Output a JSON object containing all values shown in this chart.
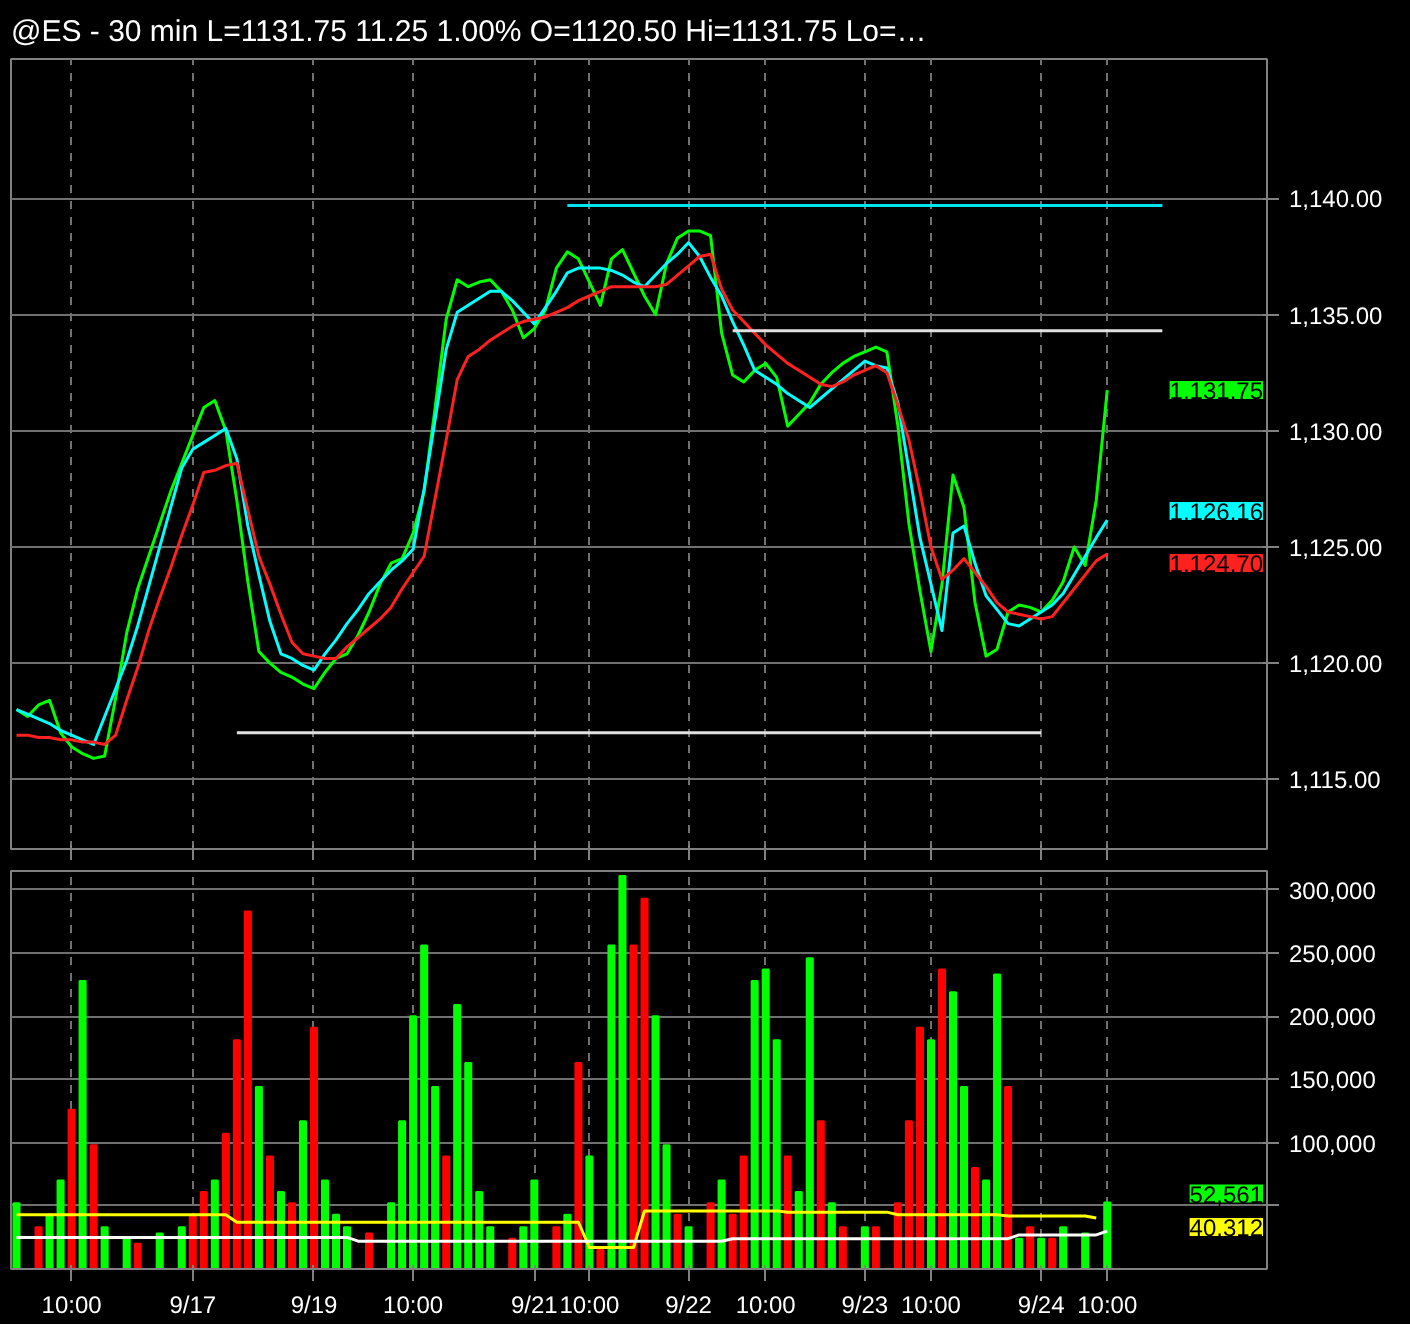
{
  "chart_data": [
    {
      "type": "line",
      "title": "@ES - 30 min  L=1131.75  11.25  1.00%  O=1120.50  Hi=1131.75  Lo=…",
      "categories": [
        null,
        null,
        null,
        null,
        null,
        null,
        null,
        null,
        null,
        null,
        null,
        null,
        null,
        null,
        null,
        null,
        null,
        null,
        null,
        null,
        null,
        null,
        null,
        null,
        null,
        null,
        null,
        null,
        null,
        null,
        null,
        null,
        null,
        null,
        null,
        null,
        null,
        null,
        null,
        null,
        null,
        null,
        null,
        null,
        null,
        null,
        null,
        null,
        null,
        null,
        null,
        null,
        null,
        null,
        null,
        null,
        null,
        null,
        null,
        null,
        null,
        null,
        null,
        null,
        null,
        null,
        null,
        null,
        null,
        null,
        null,
        null,
        null,
        null,
        null,
        null,
        null,
        null,
        null,
        null,
        null,
        null,
        null,
        null,
        null,
        null,
        null,
        null,
        null,
        null,
        null,
        null,
        null,
        null,
        null,
        null,
        null,
        null,
        null,
        null,
        null,
        null,
        null,
        null,
        null
      ],
      "ylim": [
        1112,
        1146
      ],
      "yticks": [
        {
          "value": 1115,
          "label": "1,115.00"
        },
        {
          "value": 1120,
          "label": "1,120.00"
        },
        {
          "value": 1125,
          "label": "1,125.00"
        },
        {
          "value": 1130,
          "label": "1,130.00"
        },
        {
          "value": 1135,
          "label": "1,135.00"
        },
        {
          "value": 1140,
          "label": "1,140.00"
        }
      ],
      "grid": true,
      "series": [
        {
          "color": "#00ff00",
          "values": [
            1118.0,
            1117.7,
            1118.2,
            1118.4,
            1117.0,
            1116.4,
            1116.1,
            1115.9,
            1116.0,
            1118.5,
            1121.3,
            1123.2,
            1124.6,
            1126.0,
            1127.4,
            1128.6,
            1129.8,
            1131.0,
            1131.3,
            1130.0,
            1127.0,
            1123.5,
            1120.5,
            1120.0,
            1119.6,
            1119.4,
            1119.1,
            1118.9,
            1119.6,
            1120.2,
            1120.4,
            1121.2,
            1122.2,
            1123.4,
            1124.3,
            1124.5,
            1125.6,
            1127.4,
            1131.0,
            1134.8,
            1136.5,
            1136.2,
            1136.4,
            1136.5,
            1136.0,
            1135.2,
            1134.0,
            1134.4,
            1135.2,
            1137.0,
            1137.7,
            1137.4,
            1136.4,
            1135.4,
            1137.4,
            1137.8,
            1136.8,
            1135.8,
            1135.0,
            1137.2,
            1138.3,
            1138.6,
            1138.6,
            1138.4,
            1134.2,
            1132.4,
            1132.1,
            1132.6,
            1132.9,
            1132.3,
            1130.2,
            1130.7,
            1131.2,
            1132.0,
            1132.5,
            1132.9,
            1133.2,
            1133.4,
            1133.6,
            1133.4,
            1130.2,
            1126.0,
            1123.1,
            1120.5,
            1123.4,
            1128.1,
            1126.7,
            1122.6,
            1120.3,
            1120.6,
            1122.2,
            1122.5,
            1122.4,
            1122.2,
            1122.7,
            1123.5,
            1125.0,
            1124.2,
            1127.0,
            1131.75,
            null,
            null,
            null,
            null,
            null
          ]
        },
        {
          "color": "#00ffff",
          "values": [
            1118.0,
            1117.8,
            1117.6,
            1117.4,
            1117.1,
            1116.9,
            1116.7,
            1116.5,
            1117.7,
            1118.9,
            1120.1,
            1121.6,
            1123.3,
            1125.0,
            1126.7,
            1128.4,
            1129.2,
            1129.5,
            1129.8,
            1130.1,
            1128.8,
            1125.9,
            1123.8,
            1121.8,
            1120.4,
            1120.2,
            1119.9,
            1119.7,
            1120.4,
            1121.0,
            1121.7,
            1122.3,
            1123.0,
            1123.5,
            1124.0,
            1124.4,
            1124.9,
            1127.5,
            1130.5,
            1133.5,
            1135.1,
            1135.4,
            1135.7,
            1136.0,
            1136.0,
            1135.6,
            1135.1,
            1134.6,
            1135.3,
            1136.0,
            1136.8,
            1137.0,
            1137.0,
            1137.0,
            1136.9,
            1136.7,
            1136.4,
            1136.2,
            1136.7,
            1137.2,
            1137.6,
            1138.1,
            1137.5,
            1136.6,
            1135.8,
            1134.7,
            1133.7,
            1132.6,
            1132.3,
            1132.0,
            1131.6,
            1131.3,
            1131.0,
            1131.4,
            1131.8,
            1132.2,
            1132.6,
            1133.0,
            1132.8,
            1132.7,
            1131.2,
            1128.3,
            1125.4,
            1123.4,
            1121.4,
            1125.6,
            1125.9,
            1124.3,
            1122.9,
            1122.3,
            1121.7,
            1121.6,
            1121.9,
            1122.2,
            1122.5,
            1123.0,
            1123.8,
            1124.6,
            1125.4,
            1126.16,
            null,
            null,
            null,
            null,
            null
          ]
        },
        {
          "color": "#ff2020",
          "values": [
            1116.9,
            1116.9,
            1116.8,
            1116.8,
            1116.7,
            1116.7,
            1116.6,
            1116.6,
            1116.5,
            1116.9,
            1118.4,
            1119.8,
            1121.4,
            1122.8,
            1124.1,
            1125.5,
            1126.8,
            1128.2,
            1128.3,
            1128.5,
            1128.6,
            1126.6,
            1124.6,
            1123.4,
            1122.1,
            1120.9,
            1120.4,
            1120.3,
            1120.2,
            1120.2,
            1120.7,
            1121.1,
            1121.5,
            1121.9,
            1122.4,
            1123.2,
            1123.9,
            1124.6,
            1127.1,
            1129.6,
            1132.2,
            1133.2,
            1133.5,
            1133.9,
            1134.2,
            1134.5,
            1134.7,
            1134.8,
            1134.9,
            1135.1,
            1135.3,
            1135.6,
            1135.8,
            1136.0,
            1136.2,
            1136.2,
            1136.2,
            1136.2,
            1136.2,
            1136.3,
            1136.7,
            1137.1,
            1137.5,
            1137.6,
            1136.1,
            1135.2,
            1134.7,
            1134.2,
            1133.7,
            1133.3,
            1132.9,
            1132.6,
            1132.3,
            1132.0,
            1131.9,
            1132.1,
            1132.4,
            1132.6,
            1132.8,
            1132.5,
            1131.1,
            1129.6,
            1127.4,
            1125.0,
            1123.6,
            1124.0,
            1124.5,
            1123.9,
            1123.3,
            1122.6,
            1122.2,
            1122.1,
            1122.0,
            1121.9,
            1122.0,
            1122.6,
            1123.2,
            1123.8,
            1124.4,
            1124.7,
            null,
            null,
            null,
            null,
            null
          ]
        },
        {
          "color": "#00e5ee",
          "values": [
            null,
            null,
            null,
            null,
            null,
            null,
            null,
            null,
            null,
            null,
            null,
            null,
            null,
            null,
            null,
            null,
            null,
            null,
            null,
            null,
            null,
            null,
            null,
            null,
            null,
            null,
            null,
            null,
            null,
            null,
            null,
            null,
            null,
            null,
            null,
            null,
            null,
            null,
            null,
            null,
            null,
            null,
            null,
            null,
            null,
            null,
            null,
            null,
            null,
            null,
            1139.7,
            1139.7,
            1139.7,
            1139.7,
            1139.7,
            1139.7,
            1139.7,
            1139.7,
            1139.7,
            1139.7,
            1139.7,
            1139.7,
            1139.7,
            1139.7,
            1139.7,
            1139.7,
            1139.7,
            1139.7,
            1139.7,
            1139.7,
            1139.7,
            1139.7,
            1139.7,
            1139.7,
            1139.7,
            1139.7,
            1139.7,
            1139.7,
            1139.7,
            1139.7,
            1139.7,
            1139.7,
            1139.7,
            1139.7,
            1139.7,
            1139.7,
            1139.7,
            1139.7,
            1139.7,
            1139.7,
            1139.7,
            1139.7,
            1139.7,
            1139.7,
            1139.7,
            1139.7,
            1139.7,
            1139.7,
            1139.7,
            1139.7,
            1139.7,
            1139.7,
            1139.7,
            1139.7,
            1139.7
          ]
        },
        {
          "color": "#e0e0e0",
          "values": [
            null,
            null,
            null,
            null,
            null,
            null,
            null,
            null,
            null,
            null,
            null,
            null,
            null,
            null,
            null,
            null,
            null,
            null,
            null,
            null,
            null,
            null,
            null,
            null,
            null,
            null,
            null,
            null,
            null,
            null,
            null,
            null,
            null,
            null,
            null,
            null,
            null,
            null,
            null,
            null,
            null,
            null,
            null,
            null,
            null,
            null,
            null,
            null,
            null,
            null,
            null,
            null,
            null,
            null,
            null,
            null,
            null,
            null,
            null,
            null,
            null,
            null,
            null,
            null,
            null,
            1134.3,
            1134.3,
            1134.3,
            1134.3,
            1134.3,
            1134.3,
            1134.3,
            1134.3,
            1134.3,
            1134.3,
            1134.3,
            1134.3,
            1134.3,
            1134.3,
            1134.3,
            1134.3,
            1134.3,
            1134.3,
            1134.3,
            1134.3,
            1134.3,
            1134.3,
            1134.3,
            1134.3,
            1134.3,
            1134.3,
            1134.3,
            1134.3,
            1134.3,
            1134.3,
            1134.3,
            1134.3,
            1134.3,
            1134.3,
            1134.3,
            1134.3,
            1134.3,
            1134.3,
            1134.3,
            1134.3
          ]
        },
        {
          "color": "#e0e0e0",
          "values": [
            null,
            null,
            null,
            null,
            null,
            null,
            null,
            null,
            null,
            null,
            null,
            null,
            null,
            null,
            null,
            null,
            null,
            null,
            null,
            null,
            1117.0,
            1117.0,
            1117.0,
            1117.0,
            1117.0,
            1117.0,
            1117.0,
            1117.0,
            1117.0,
            1117.0,
            1117.0,
            1117.0,
            1117.0,
            1117.0,
            1117.0,
            1117.0,
            1117.0,
            1117.0,
            1117.0,
            1117.0,
            1117.0,
            1117.0,
            1117.0,
            1117.0,
            1117.0,
            1117.0,
            1117.0,
            1117.0,
            1117.0,
            1117.0,
            1117.0,
            1117.0,
            1117.0,
            1117.0,
            1117.0,
            1117.0,
            1117.0,
            1117.0,
            1117.0,
            1117.0,
            1117.0,
            1117.0,
            1117.0,
            1117.0,
            1117.0,
            1117.0,
            1117.0,
            1117.0,
            1117.0,
            1117.0,
            1117.0,
            1117.0,
            1117.0,
            1117.0,
            1117.0,
            1117.0,
            1117.0,
            1117.0,
            1117.0,
            1117.0,
            1117.0,
            1117.0,
            1117.0,
            1117.0,
            1117.0,
            1117.0,
            1117.0,
            1117.0,
            1117.0,
            1117.0,
            1117.0,
            1117.0,
            1117.0,
            1117.0,
            null,
            null,
            null,
            null,
            null,
            null,
            null,
            null,
            null,
            null,
            null
          ]
        }
      ],
      "annotations": [
        "1,131.75",
        "1,126.16",
        "1,124.70"
      ]
    },
    {
      "type": "bar",
      "categories": [
        null,
        null,
        null,
        null,
        null,
        "10:00",
        null,
        null,
        null,
        null,
        null,
        null,
        null,
        null,
        null,
        null,
        "9/17",
        null,
        null,
        null,
        null,
        null,
        null,
        null,
        null,
        null,
        null,
        "9/19",
        null,
        null,
        null,
        null,
        null,
        null,
        null,
        null,
        "10:00",
        null,
        null,
        null,
        null,
        null,
        null,
        null,
        null,
        null,
        null,
        "9/21",
        null,
        null,
        null,
        null,
        "10:00",
        null,
        null,
        null,
        null,
        null,
        null,
        null,
        null,
        "9/22",
        null,
        null,
        null,
        null,
        null,
        null,
        "10:00",
        null,
        null,
        null,
        null,
        null,
        null,
        null,
        null,
        "9/23",
        null,
        null,
        null,
        null,
        null,
        "10:00",
        null,
        null,
        null,
        null,
        null,
        null,
        null,
        null,
        null,
        "9/24",
        null,
        null,
        null,
        null,
        null,
        "10:00",
        null,
        null,
        null,
        null,
        null
      ],
      "ylim": [
        0,
        315000
      ],
      "yticks": [
        {
          "value": 50000,
          "label": null
        },
        {
          "value": 100000,
          "label": "100,000"
        },
        {
          "value": 150000,
          "label": "150,000"
        },
        {
          "value": 200000,
          "label": "200,000"
        },
        {
          "value": 250000,
          "label": "250,000"
        },
        {
          "value": 300000,
          "label": "300,000"
        }
      ],
      "grid": true,
      "series": [
        {
          "type": "bar",
          "values": [
            52000,
            null,
            33000,
            43000,
            70000,
            126000,
            228000,
            98000,
            33000,
            null,
            24000,
            20000,
            null,
            28000,
            null,
            33000,
            43000,
            61000,
            70000,
            107000,
            181000,
            283000,
            144000,
            89000,
            61000,
            52000,
            117000,
            191000,
            70000,
            43000,
            33000,
            null,
            28000,
            null,
            52000,
            117000,
            200000,
            256000,
            144000,
            89000,
            209000,
            163000,
            61000,
            33000,
            null,
            24000,
            33000,
            70000,
            null,
            33000,
            43000,
            163000,
            89000,
            15000,
            256000,
            311000,
            256000,
            293000,
            200000,
            98000,
            43000,
            33000,
            null,
            52000,
            70000,
            43000,
            89000,
            228000,
            237000,
            181000,
            89000,
            61000,
            246000,
            117000,
            52000,
            33000,
            null,
            33000,
            33000,
            null,
            52000,
            117000,
            191000,
            181000,
            237000,
            219000,
            144000,
            80000,
            70000,
            233000,
            144000,
            24000,
            33000,
            24000,
            24000,
            33000,
            null,
            28000,
            null,
            52561,
            null,
            null,
            null,
            null,
            null
          ],
          "colors": [
            "#00ff00",
            null,
            "#ff0000",
            "#00ff00",
            "#00ff00",
            "#ff0000",
            "#00ff00",
            "#ff0000",
            "#00ff00",
            null,
            "#00ff00",
            "#ff0000",
            null,
            "#00ff00",
            null,
            "#00ff00",
            "#ff0000",
            "#ff0000",
            "#00ff00",
            "#ff0000",
            "#ff0000",
            "#ff0000",
            "#00ff00",
            "#ff0000",
            "#00ff00",
            "#ff0000",
            "#00ff00",
            "#ff0000",
            "#00ff00",
            "#00ff00",
            "#00ff00",
            null,
            "#ff0000",
            null,
            "#00ff00",
            "#00ff00",
            "#00ff00",
            "#00ff00",
            "#00ff00",
            "#ff0000",
            "#00ff00",
            "#00ff00",
            "#00ff00",
            "#00ff00",
            null,
            "#ff0000",
            "#00ff00",
            "#00ff00",
            null,
            "#ff0000",
            "#00ff00",
            "#ff0000",
            "#00ff00",
            "#ff0000",
            "#00ff00",
            "#00ff00",
            "#ff0000",
            "#ff0000",
            "#00ff00",
            "#00ff00",
            "#ff0000",
            "#00ff00",
            null,
            "#ff0000",
            "#00ff00",
            "#ff0000",
            "#ff0000",
            "#00ff00",
            "#00ff00",
            "#00ff00",
            "#ff0000",
            "#00ff00",
            "#00ff00",
            "#ff0000",
            "#00ff00",
            "#ff0000",
            null,
            "#00ff00",
            "#ff0000",
            null,
            "#ff0000",
            "#ff0000",
            "#ff0000",
            "#00ff00",
            "#ff0000",
            "#00ff00",
            "#00ff00",
            "#ff0000",
            "#00ff00",
            "#00ff00",
            "#ff0000",
            "#00ff00",
            "#ff0000",
            "#00ff00",
            "#ff0000",
            "#00ff00",
            null,
            "#00ff00",
            null,
            "#00ff00",
            null,
            null,
            null,
            null,
            null
          ]
        },
        {
          "type": "line",
          "color": "#ffff00",
          "values": [
            43000,
            43000,
            43000,
            43000,
            43000,
            43000,
            43000,
            43000,
            43000,
            43000,
            43000,
            43000,
            43000,
            43000,
            43000,
            43000,
            43000,
            43000,
            43000,
            43000,
            37000,
            37000,
            37000,
            37000,
            37000,
            37000,
            37000,
            37000,
            37000,
            37000,
            37000,
            37000,
            37000,
            37000,
            37000,
            37000,
            37000,
            37000,
            37000,
            37000,
            37000,
            37000,
            37000,
            37000,
            37000,
            37000,
            37000,
            37000,
            37000,
            37000,
            37000,
            37000,
            17000,
            17000,
            17000,
            17000,
            17000,
            46000,
            46000,
            46000,
            46000,
            46000,
            46000,
            46000,
            46000,
            46000,
            46000,
            46000,
            46000,
            46000,
            45000,
            45000,
            45000,
            45000,
            45000,
            45000,
            45000,
            45000,
            45000,
            45000,
            43000,
            43000,
            43000,
            43000,
            43000,
            43000,
            43000,
            43000,
            43000,
            43000,
            42000,
            42000,
            42000,
            42000,
            42000,
            42000,
            42000,
            42000,
            40312,
            null,
            null,
            null,
            null,
            null,
            null
          ]
        },
        {
          "type": "line",
          "color": "#ffffff",
          "values": [
            25000,
            25000,
            25000,
            25000,
            25000,
            25000,
            25000,
            25000,
            25000,
            25000,
            25000,
            25000,
            25000,
            25000,
            25000,
            25000,
            25000,
            25000,
            25000,
            25000,
            25000,
            25000,
            25000,
            25000,
            25000,
            25000,
            25000,
            25000,
            25000,
            25000,
            25000,
            22000,
            22000,
            22000,
            22000,
            22000,
            22000,
            22000,
            22000,
            22000,
            22000,
            22000,
            22000,
            22000,
            22000,
            22000,
            22000,
            22000,
            22000,
            22000,
            22000,
            22000,
            22000,
            22000,
            22000,
            22000,
            22000,
            22000,
            22000,
            22000,
            22000,
            22000,
            22000,
            22000,
            22000,
            24000,
            24000,
            24000,
            24000,
            24000,
            24000,
            24000,
            24000,
            24000,
            24000,
            24000,
            24000,
            24000,
            24000,
            24000,
            24000,
            24000,
            24000,
            24000,
            24000,
            24000,
            24000,
            24000,
            24000,
            24000,
            24000,
            27000,
            27000,
            27000,
            27000,
            27000,
            27000,
            27000,
            27000,
            30000,
            null,
            null,
            null,
            null,
            null
          ]
        }
      ],
      "annotations": [
        "52,561",
        "40,312"
      ]
    }
  ]
}
